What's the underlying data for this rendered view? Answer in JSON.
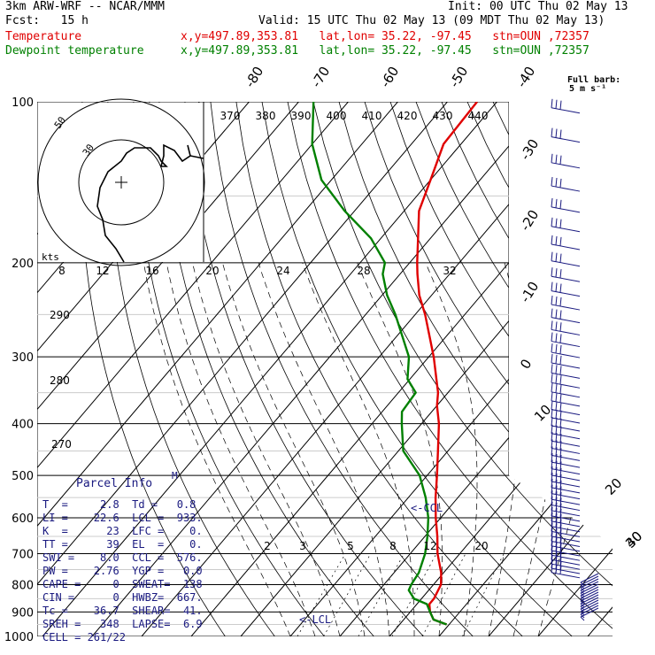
{
  "header": {
    "model": "3km ARW-WRF -- NCAR/MMM",
    "init": "Init: 00 UTC Thu 02 May 13",
    "fcst": "Fcst:   15 h",
    "valid": "Valid: 15 UTC Thu 02 May 13 (09 MDT Thu 02 May 13)",
    "temp_label": "Temperature",
    "dew_label": "Dewpoint temperature",
    "location": "x,y=497.89,353.81   lat,lon= 35.22, -97.45   stn=OUN ,72357",
    "barb_legend_1": "Full barb:",
    "barb_legend_2": "5 m s⁻¹"
  },
  "colors": {
    "temperature": "#e00000",
    "dewpoint": "#008000",
    "parcel_text": "#1a1a80",
    "barbs": "#1a1a80",
    "grid": "#000000"
  },
  "parcel": {
    "title": "Parcel Info",
    "marker": "M",
    "rows": [
      "T  =     2.8  Td =   0.8",
      "LI =    22.6  LCL =  933.",
      "K  =      23  LFC =    0.",
      "TT =      39  EL  =    0.",
      "SWI =    8.0  CCL =  576.",
      "PW =    2.76  YGP =   0.0",
      "CAPE =     0  SWEAT=  138",
      "CIN =      0  HWBZ=  667.",
      "Tc =    36.7  SHEAR=  41.",
      "SREH =   348  LAPSE=  6.9",
      "CELL = 261/22"
    ]
  },
  "chart_data": {
    "type": "line",
    "subtype": "skew-T log-p sounding",
    "pressure_axis": {
      "unit": "hPa",
      "scale": "log",
      "range": [
        1000,
        100
      ],
      "ticks": [
        "100",
        "200",
        "300",
        "400",
        "500",
        "600",
        "700",
        "800",
        "900",
        "1000"
      ]
    },
    "isotherm_labels": [
      "-80",
      "-70",
      "-60",
      "-50",
      "-40",
      "-30",
      "-20",
      "-10",
      "0",
      "10",
      "20",
      "30",
      "40"
    ],
    "theta_labels": [
      "370",
      "380",
      "390",
      "400",
      "410",
      "420",
      "430",
      "440"
    ],
    "lower_theta_labels": [
      "290",
      "280",
      "270"
    ],
    "mixing_ratio_labels": [
      "2",
      "3",
      "5",
      "8",
      "12",
      "20"
    ],
    "series": [
      {
        "name": "Temperature",
        "color": "#e00000",
        "p": [
          950,
          930,
          900,
          870,
          850,
          800,
          760,
          700,
          650,
          600,
          550,
          500,
          450,
          400,
          370,
          350,
          300,
          250,
          230,
          210,
          200,
          180,
          160,
          140,
          120,
          100
        ],
        "t": [
          19.5,
          16.0,
          14.0,
          12.5,
          12.5,
          11.5,
          9.5,
          5.5,
          2.5,
          -1.0,
          -4.5,
          -8.0,
          -12.0,
          -16.5,
          -20.0,
          -22.0,
          -29.0,
          -38.0,
          -42.5,
          -46.5,
          -48.5,
          -52.5,
          -57.0,
          -60.0,
          -63.5,
          -64.0
        ]
      },
      {
        "name": "Dewpoint temperature",
        "color": "#008000",
        "p": [
          950,
          930,
          900,
          870,
          850,
          820,
          800,
          760,
          700,
          650,
          600,
          550,
          500,
          450,
          400,
          380,
          350,
          330,
          300,
          250,
          230,
          210,
          200,
          180,
          160,
          140,
          120,
          100
        ],
        "t": [
          19.5,
          16.0,
          14.0,
          12.0,
          8.5,
          6.0,
          5.5,
          5.0,
          3.0,
          0.5,
          -2.5,
          -6.5,
          -11.5,
          -19.0,
          -24.0,
          -26.0,
          -26.5,
          -30.5,
          -34.0,
          -44.0,
          -49.0,
          -53.5,
          -55.0,
          -62.0,
          -72.0,
          -82.0,
          -90.0,
          -97.0
        ]
      }
    ],
    "hodograph": {
      "unit": "kts",
      "rings": [
        "30",
        "50"
      ],
      "speed_ticks": [
        "8",
        "12",
        "16",
        "20",
        "24",
        "28",
        "32"
      ],
      "u": [
        1,
        -2,
        -6,
        -7,
        -9,
        -8,
        -5,
        0,
        2,
        5,
        11,
        14,
        15,
        17,
        15,
        16,
        16,
        20,
        23,
        26,
        25,
        26,
        31
      ],
      "v": [
        -30,
        -25,
        -20,
        -14,
        -9,
        -2,
        4,
        8,
        11,
        13,
        13,
        10,
        8,
        6,
        6,
        10,
        14,
        12,
        8,
        10,
        14,
        10,
        9
      ]
    },
    "annotations": [
      "<-CCL",
      "<-LCL"
    ],
    "wind_barbs": {
      "legend": "Full barb: 5 m s⁻¹"
    },
    "grid": true
  }
}
